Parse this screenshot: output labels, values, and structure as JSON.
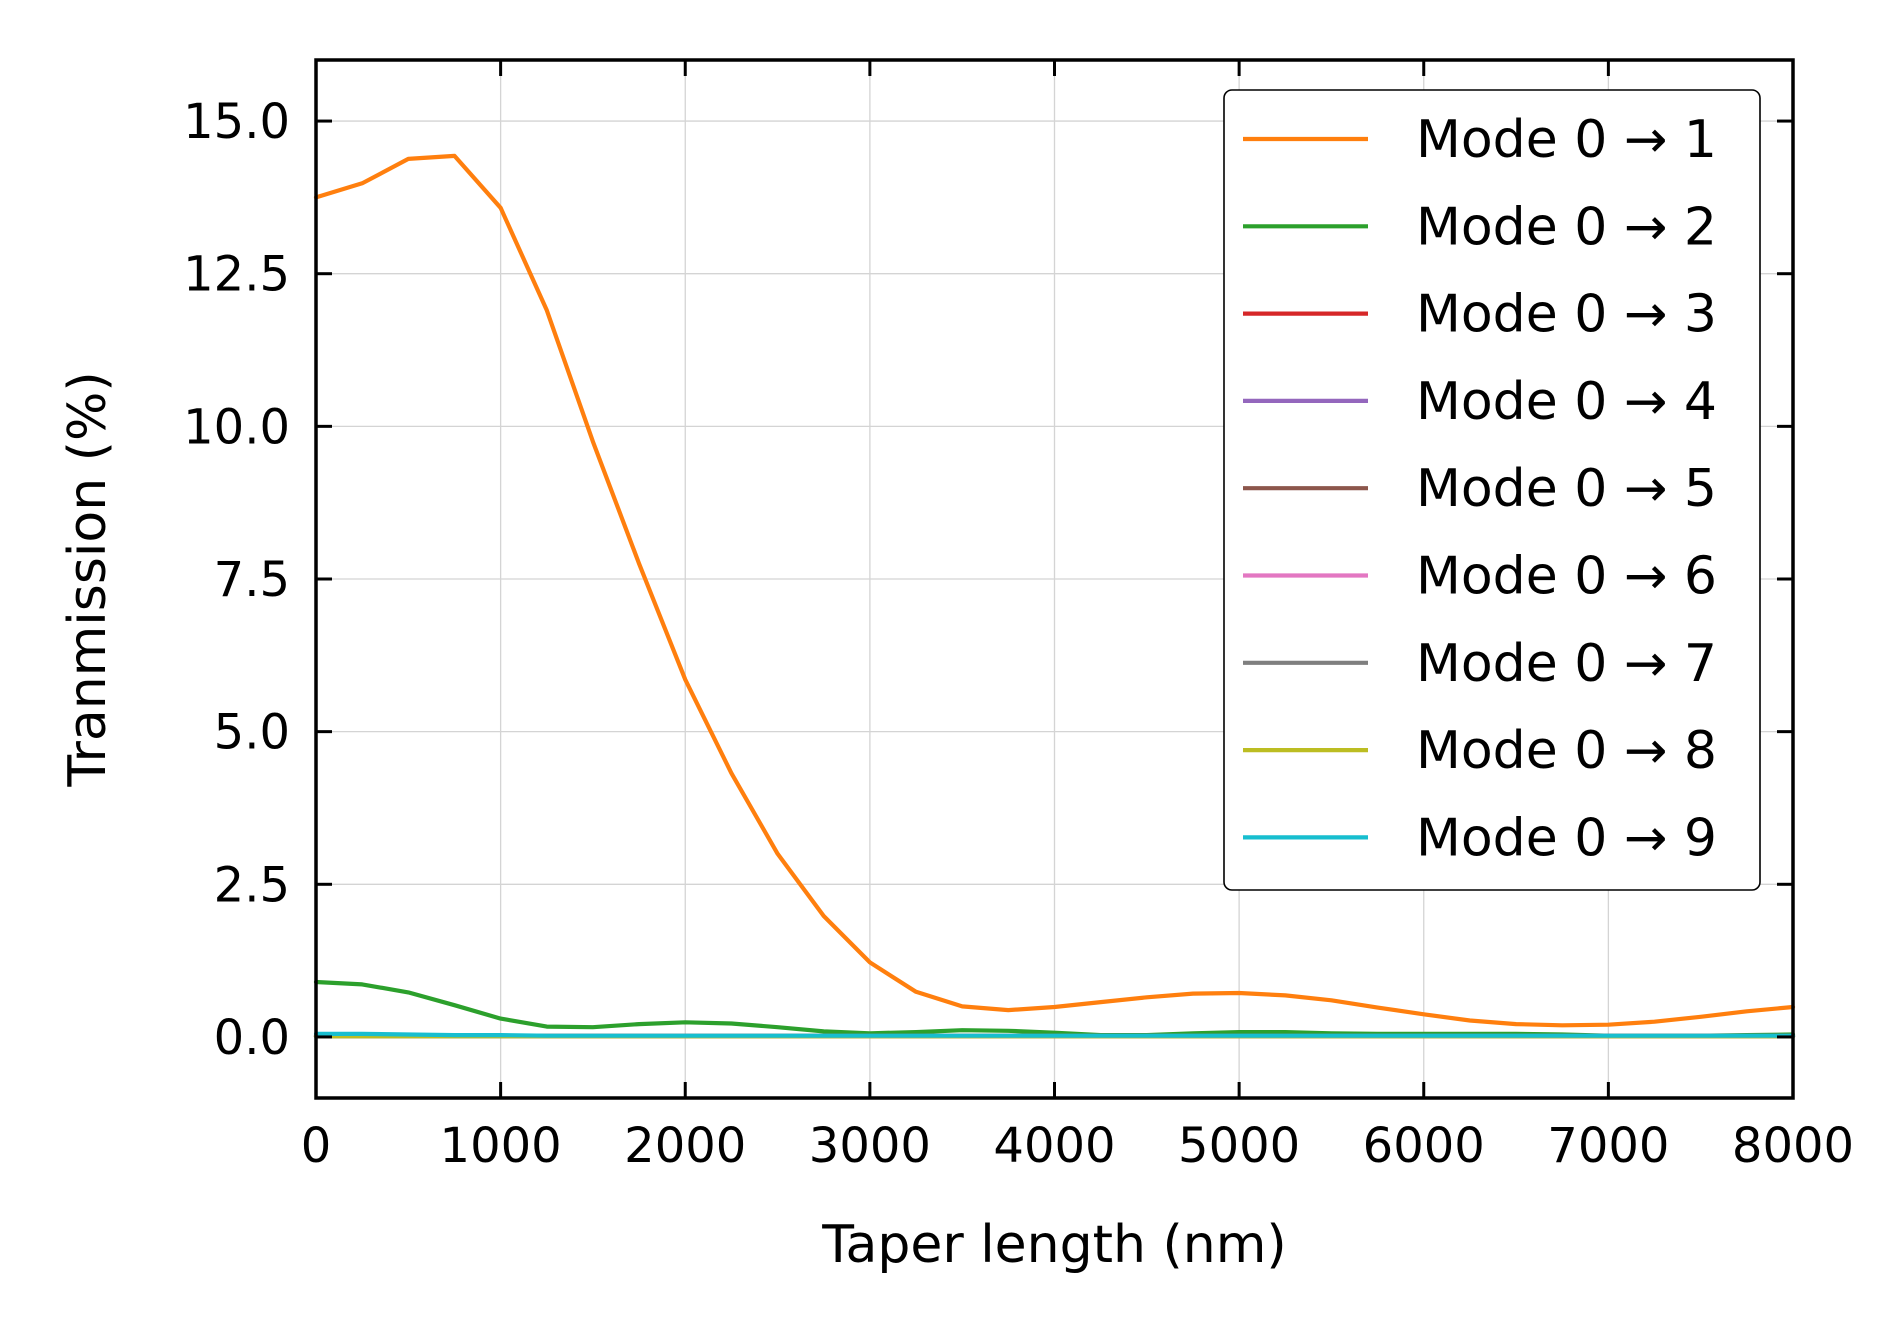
{
  "chart_data": {
    "type": "line",
    "title": "",
    "xlabel": "Taper length (nm)",
    "ylabel": "Tranmission (%)",
    "xlim": [
      0,
      8000
    ],
    "ylim": [
      -1.0,
      16.0
    ],
    "xticks": [
      0,
      1000,
      2000,
      3000,
      4000,
      5000,
      6000,
      7000,
      8000
    ],
    "xtick_labels": [
      "0",
      "1000",
      "2000",
      "3000",
      "4000",
      "5000",
      "6000",
      "7000",
      "8000"
    ],
    "yticks": [
      0.0,
      2.5,
      5.0,
      7.5,
      10.0,
      12.5,
      15.0
    ],
    "ytick_labels": [
      "0.0",
      "2.5",
      "5.0",
      "7.5",
      "10.0",
      "12.5",
      "15.0"
    ],
    "grid": true,
    "legend_position": "top-right",
    "x": [
      0,
      250,
      500,
      750,
      1000,
      1250,
      1500,
      1750,
      2000,
      2250,
      2500,
      2750,
      3000,
      3250,
      3500,
      3750,
      4000,
      4250,
      4500,
      4750,
      5000,
      5250,
      5500,
      5750,
      6000,
      6250,
      6500,
      6750,
      7000,
      7250,
      7500,
      7750,
      8000
    ],
    "series": [
      {
        "name": "Mode 0 1",
        "label": "Mode 0 → 1",
        "color": "#ff7f0e",
        "values": [
          13.75,
          13.98,
          14.38,
          14.43,
          13.58,
          11.9,
          9.75,
          7.75,
          5.85,
          4.32,
          3.0,
          1.98,
          1.22,
          0.74,
          0.5,
          0.44,
          0.49,
          0.57,
          0.65,
          0.71,
          0.72,
          0.68,
          0.6,
          0.48,
          0.37,
          0.27,
          0.21,
          0.19,
          0.2,
          0.25,
          0.33,
          0.42,
          0.49
        ]
      },
      {
        "name": "Mode 0 2",
        "label": "Mode 0 → 2",
        "color": "#2ca02c",
        "values": [
          0.9,
          0.86,
          0.73,
          0.52,
          0.3,
          0.17,
          0.16,
          0.21,
          0.24,
          0.22,
          0.16,
          0.09,
          0.06,
          0.08,
          0.11,
          0.1,
          0.07,
          0.03,
          0.03,
          0.06,
          0.08,
          0.08,
          0.06,
          0.05,
          0.05,
          0.05,
          0.05,
          0.04,
          0.02,
          0.02,
          0.02,
          0.03,
          0.04
        ]
      },
      {
        "name": "Mode 0 3",
        "label": "Mode 0 → 3",
        "color": "#d62728",
        "values": [
          0.02,
          0.02,
          0.02,
          0.02,
          0.02,
          0.02,
          0.02,
          0.02,
          0.02,
          0.02,
          0.02,
          0.02,
          0.02,
          0.02,
          0.02,
          0.02,
          0.02,
          0.02,
          0.02,
          0.02,
          0.02,
          0.02,
          0.02,
          0.02,
          0.02,
          0.02,
          0.02,
          0.02,
          0.02,
          0.02,
          0.02,
          0.02,
          0.02
        ]
      },
      {
        "name": "Mode 0 4",
        "label": "Mode 0 → 4",
        "color": "#9467bd",
        "values": [
          0.01,
          0.01,
          0.01,
          0.01,
          0.01,
          0.01,
          0.01,
          0.01,
          0.01,
          0.01,
          0.01,
          0.01,
          0.01,
          0.01,
          0.01,
          0.01,
          0.01,
          0.01,
          0.01,
          0.01,
          0.01,
          0.01,
          0.01,
          0.01,
          0.01,
          0.01,
          0.01,
          0.01,
          0.01,
          0.01,
          0.01,
          0.01,
          0.01
        ]
      },
      {
        "name": "Mode 0 5",
        "label": "Mode 0 → 5",
        "color": "#8c564b",
        "values": [
          0.01,
          0.01,
          0.01,
          0.01,
          0.01,
          0.01,
          0.01,
          0.01,
          0.01,
          0.01,
          0.01,
          0.01,
          0.01,
          0.01,
          0.01,
          0.01,
          0.01,
          0.01,
          0.01,
          0.01,
          0.01,
          0.01,
          0.01,
          0.01,
          0.01,
          0.01,
          0.01,
          0.01,
          0.01,
          0.01,
          0.01,
          0.01,
          0.01
        ]
      },
      {
        "name": "Mode 0 6",
        "label": "Mode 0 → 6",
        "color": "#e377c2",
        "values": [
          0.01,
          0.01,
          0.01,
          0.01,
          0.01,
          0.01,
          0.01,
          0.01,
          0.01,
          0.01,
          0.01,
          0.01,
          0.01,
          0.01,
          0.01,
          0.01,
          0.01,
          0.01,
          0.01,
          0.01,
          0.01,
          0.01,
          0.01,
          0.01,
          0.01,
          0.01,
          0.01,
          0.01,
          0.01,
          0.01,
          0.01,
          0.01,
          0.01
        ]
      },
      {
        "name": "Mode 0 7",
        "label": "Mode 0 → 7",
        "color": "#7f7f7f",
        "values": [
          0.01,
          0.01,
          0.01,
          0.01,
          0.01,
          0.01,
          0.01,
          0.01,
          0.01,
          0.01,
          0.01,
          0.01,
          0.01,
          0.01,
          0.01,
          0.01,
          0.01,
          0.01,
          0.01,
          0.01,
          0.01,
          0.01,
          0.01,
          0.01,
          0.01,
          0.01,
          0.01,
          0.01,
          0.01,
          0.01,
          0.01,
          0.01,
          0.01
        ]
      },
      {
        "name": "Mode 0 8",
        "label": "Mode 0 → 8",
        "color": "#bcbd22",
        "values": [
          0.01,
          0.01,
          0.01,
          0.01,
          0.01,
          0.01,
          0.01,
          0.01,
          0.01,
          0.01,
          0.01,
          0.01,
          0.01,
          0.01,
          0.01,
          0.01,
          0.01,
          0.01,
          0.01,
          0.01,
          0.01,
          0.01,
          0.01,
          0.01,
          0.01,
          0.01,
          0.01,
          0.01,
          0.01,
          0.01,
          0.01,
          0.01,
          0.01
        ]
      },
      {
        "name": "Mode 0 9",
        "label": "Mode 0 → 9",
        "color": "#17becf",
        "values": [
          0.05,
          0.05,
          0.04,
          0.03,
          0.03,
          0.02,
          0.02,
          0.02,
          0.02,
          0.02,
          0.02,
          0.02,
          0.02,
          0.02,
          0.02,
          0.02,
          0.02,
          0.02,
          0.02,
          0.02,
          0.02,
          0.02,
          0.02,
          0.02,
          0.02,
          0.02,
          0.02,
          0.02,
          0.02,
          0.02,
          0.02,
          0.02,
          0.02
        ]
      }
    ]
  }
}
